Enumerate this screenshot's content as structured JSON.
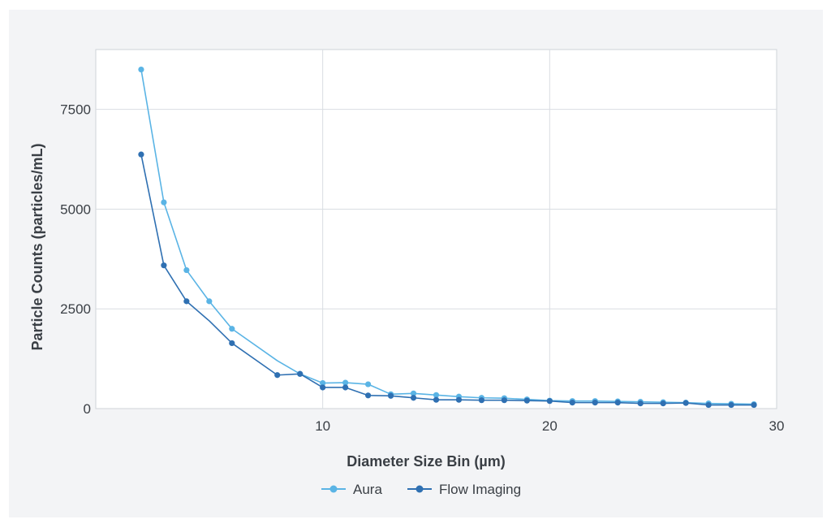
{
  "chart_data": {
    "type": "line",
    "xlabel": "Diameter Size Bin (µm)",
    "ylabel": "Particle Counts (particles/mL)",
    "xlim": [
      0,
      30
    ],
    "ylim": [
      0,
      9000
    ],
    "xticks": [
      10,
      20,
      30
    ],
    "yticks": [
      0,
      2500,
      5000,
      7500
    ],
    "grid": true,
    "legend": "bottom",
    "series": [
      {
        "name": "Aura",
        "color": "#5ab4e5",
        "x": [
          2,
          3,
          4,
          5,
          6,
          9,
          10,
          11,
          12,
          13,
          14,
          15,
          16,
          17,
          18,
          19,
          20,
          21,
          22,
          23,
          24,
          25,
          26,
          27,
          28,
          29
        ],
        "y": [
          8500,
          5170,
          3470,
          2690,
          2000,
          870,
          640,
          650,
          610,
          360,
          380,
          340,
          300,
          270,
          260,
          230,
          200,
          190,
          190,
          180,
          170,
          160,
          150,
          130,
          120,
          110
        ],
        "line_x": [
          2,
          3,
          4,
          5,
          6,
          8,
          9,
          10,
          11,
          12,
          13,
          14,
          15,
          16,
          17,
          18,
          19,
          20,
          21,
          22,
          23,
          24,
          25,
          26,
          27,
          28,
          29
        ],
        "line_y": [
          8500,
          5170,
          3470,
          2690,
          2000,
          1200,
          870,
          640,
          650,
          610,
          360,
          380,
          340,
          300,
          270,
          260,
          230,
          200,
          190,
          190,
          180,
          170,
          160,
          150,
          130,
          120,
          110
        ]
      },
      {
        "name": "Flow Imaging",
        "color": "#2f70b2",
        "x": [
          2,
          3,
          4,
          6,
          8,
          9,
          10,
          11,
          12,
          13,
          14,
          15,
          16,
          17,
          18,
          19,
          20,
          21,
          22,
          23,
          24,
          25,
          26,
          27,
          28,
          29
        ],
        "y": [
          6370,
          3590,
          2690,
          1640,
          840,
          870,
          530,
          530,
          330,
          320,
          270,
          220,
          220,
          210,
          210,
          200,
          190,
          150,
          150,
          150,
          130,
          130,
          140,
          90,
          90,
          90
        ],
        "line_x": [
          2,
          3,
          4,
          5,
          6,
          8,
          9,
          10,
          11,
          12,
          13,
          14,
          15,
          16,
          17,
          18,
          19,
          20,
          21,
          22,
          23,
          24,
          25,
          26,
          27,
          28,
          29
        ],
        "line_y": [
          6370,
          3590,
          2690,
          2200,
          1640,
          840,
          870,
          530,
          530,
          330,
          320,
          270,
          220,
          220,
          210,
          210,
          200,
          190,
          150,
          150,
          150,
          130,
          130,
          140,
          90,
          90,
          90
        ]
      }
    ]
  }
}
